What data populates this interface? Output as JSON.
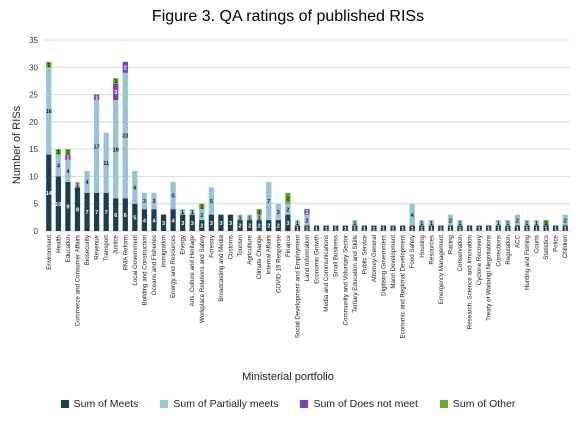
{
  "chart_data": {
    "type": "bar",
    "stacked": true,
    "title": "Figure 3. QA ratings of published RISs",
    "xlabel": "Ministerial portfolio",
    "ylabel": "Number of RISs",
    "ylim": [
      0,
      35
    ],
    "yticks": [
      0,
      5,
      10,
      15,
      20,
      25,
      30,
      35
    ],
    "grid": true,
    "legend_position": "bottom",
    "categories": [
      "Environment",
      "Health",
      "Education",
      "Commerce and Consumer Affairs",
      "Biosecurity",
      "Revenue",
      "Transport",
      "Justice",
      "RMA Reform",
      "Local Government",
      "Building and Construction",
      "Oceans and Fisheries",
      "Immigration",
      "Energy and Resources",
      "Energy",
      "Arts, Culture and Heritage",
      "Workplace Relations and Safety",
      "Forestry",
      "Broadcasting and Media",
      "Customs",
      "Tourism",
      "Agriculture",
      "Climate Change",
      "Internal Affairs",
      "COVID-19 Response",
      "Finance",
      "Social Development and Employment",
      "Land Information",
      "Economic Growth",
      "Media and Communications",
      "Small Business",
      "Community and Voluntary Sector",
      "Tertiary Education and Skills",
      "Public Service",
      "Attorney-General",
      "Digitising Government",
      "Maori Development",
      "Economic and Regional Development",
      "Food Safety",
      "Housing",
      "Resources",
      "Emergency Management",
      "Racing",
      "Conservation",
      "Research, Science and Innovation",
      "Cyclone Recovery",
      "Treaty of Waitangi Negotiations",
      "Corrections",
      "Regulation",
      "ACC",
      "Hunting and Fishing",
      "Courts",
      "Statistics",
      "Police",
      "Children"
    ],
    "series": [
      {
        "name": "Sum of Meets",
        "color": "#1c3f50",
        "values": [
          14,
          10,
          9,
          8,
          7,
          7,
          7,
          6,
          6,
          5,
          4,
          4,
          3,
          4,
          3,
          3,
          2,
          3,
          3,
          3,
          2,
          2,
          2,
          2,
          2,
          3,
          1,
          1,
          1,
          1,
          1,
          1,
          1,
          1,
          1,
          1,
          1,
          1,
          1,
          1,
          1,
          1,
          1,
          1,
          1,
          1,
          1,
          1,
          1,
          1,
          1,
          1,
          1,
          1,
          1
        ]
      },
      {
        "name": "Sum of Partially meets",
        "color": "#98c5d3",
        "values": [
          16,
          4,
          4,
          1,
          4,
          17,
          11,
          18,
          23,
          6,
          3,
          3,
          0,
          5,
          1,
          1,
          2,
          5,
          0,
          0,
          1,
          1,
          1,
          7,
          3,
          2,
          1,
          2,
          0,
          0,
          0,
          0,
          1,
          0,
          0,
          0,
          0,
          0,
          4,
          1,
          1,
          0,
          2,
          1,
          0,
          0,
          0,
          1,
          1,
          2,
          1,
          1,
          0,
          0,
          2
        ]
      },
      {
        "name": "Sum of Does not meet",
        "color": "#7343b8",
        "values": [
          0,
          0,
          1,
          0,
          0,
          1,
          0,
          3,
          2,
          0,
          0,
          0,
          0,
          0,
          0,
          0,
          0,
          0,
          0,
          0,
          0,
          0,
          0,
          0,
          0,
          0,
          0,
          1,
          0,
          0,
          0,
          0,
          0,
          0,
          0,
          0,
          0,
          0,
          0,
          0,
          0,
          0,
          0,
          0,
          0,
          0,
          0,
          0,
          0,
          0,
          0,
          0,
          0,
          0,
          0
        ]
      },
      {
        "name": "Sum of Other",
        "color": "#6aa632",
        "values": [
          1,
          1,
          1,
          0,
          0,
          0,
          0,
          1,
          0,
          0,
          0,
          0,
          0,
          0,
          0,
          0,
          1,
          0,
          0,
          0,
          0,
          0,
          1,
          0,
          0,
          2,
          0,
          0,
          0,
          0,
          0,
          0,
          0,
          0,
          0,
          0,
          0,
          0,
          0,
          0,
          0,
          0,
          0,
          0,
          0,
          0,
          0,
          0,
          0,
          0,
          0,
          0,
          1,
          0,
          0
        ]
      }
    ]
  }
}
